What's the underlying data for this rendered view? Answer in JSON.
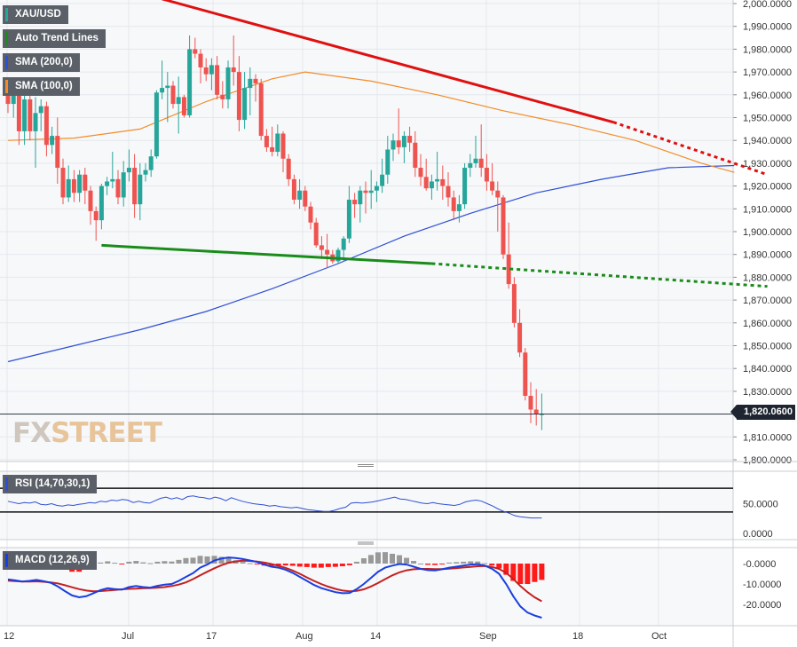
{
  "colors": {
    "bull": "#26a69a",
    "bear": "#ef5350",
    "sma200": "#2f4fd3",
    "sma100": "#f28c28",
    "trend_down": "#e01010",
    "trend_up": "#1a8c1a",
    "rsi": "#2f4fd3",
    "macd": "#1a3fe0",
    "signal": "#c42020",
    "hist_neg": "#ff1a1a",
    "hist_pos": "#999999"
  },
  "legend": {
    "symbol": "XAU/USD",
    "trend": "Auto Trend Lines",
    "sma200": "SMA (200,0)",
    "sma100": "SMA (100,0)",
    "rsi": "RSI (14,70,30,1)",
    "macd": "MACD (12,26,9)"
  },
  "watermark": {
    "fx": "FX",
    "street": "STREET"
  },
  "current_price": "1,820.0600",
  "x_axis_labels": [
    "12",
    "Jul",
    "17",
    "Aug",
    "14",
    "Sep",
    "18",
    "Oct"
  ],
  "chart_data": [
    {
      "type": "candlestick",
      "title": "XAU/USD",
      "ylim": [
        1800,
        2000
      ],
      "y_ticks": [
        "1,800.0000",
        "1,810.0000",
        "1,820.0000",
        "1,830.0000",
        "1,840.0000",
        "1,850.0000",
        "1,860.0000",
        "1,870.0000",
        "1,880.0000",
        "1,890.0000",
        "1,900.0000",
        "1,910.0000",
        "1,920.0000",
        "1,930.0000",
        "1,940.0000",
        "1,950.0000",
        "1,960.0000",
        "1,970.0000",
        "1,980.0000",
        "1,990.0000",
        "2,000.0000"
      ],
      "last_price": 1820.06,
      "ohlc": [
        [
          1962,
          1964,
          1952,
          1956
        ],
        [
          1956,
          1966,
          1950,
          1961
        ],
        [
          1961,
          1963,
          1938,
          1944
        ],
        [
          1944,
          1962,
          1938,
          1958
        ],
        [
          1958,
          1961,
          1940,
          1944
        ],
        [
          1944,
          1959,
          1928,
          1952
        ],
        [
          1952,
          1958,
          1944,
          1955
        ],
        [
          1955,
          1957,
          1933,
          1938
        ],
        [
          1938,
          1946,
          1934,
          1942
        ],
        [
          1942,
          1950,
          1921,
          1928
        ],
        [
          1928,
          1932,
          1912,
          1915
        ],
        [
          1915,
          1929,
          1913,
          1923
        ],
        [
          1923,
          1927,
          1913,
          1917
        ],
        [
          1917,
          1927,
          1913,
          1925
        ],
        [
          1925,
          1928,
          1912,
          1918
        ],
        [
          1918,
          1920,
          1903,
          1909
        ],
        [
          1909,
          1911,
          1896,
          1905
        ],
        [
          1905,
          1921,
          1901,
          1920
        ],
        [
          1920,
          1924,
          1916,
          1922
        ],
        [
          1922,
          1935,
          1919,
          1923
        ],
        [
          1923,
          1927,
          1912,
          1915
        ],
        [
          1915,
          1931,
          1911,
          1926
        ],
        [
          1926,
          1936,
          1922,
          1928
        ],
        [
          1928,
          1934,
          1906,
          1912
        ],
        [
          1912,
          1930,
          1905,
          1925
        ],
        [
          1925,
          1930,
          1922,
          1927
        ],
        [
          1927,
          1936,
          1924,
          1933
        ],
        [
          1933,
          1962,
          1932,
          1961
        ],
        [
          1961,
          1975,
          1958,
          1963
        ],
        [
          1963,
          1970,
          1948,
          1964
        ],
        [
          1964,
          1966,
          1954,
          1956
        ],
        [
          1956,
          1968,
          1943,
          1959
        ],
        [
          1959,
          1960,
          1950,
          1951
        ],
        [
          1951,
          1986,
          1950,
          1980
        ],
        [
          1980,
          1985,
          1976,
          1978
        ],
        [
          1978,
          1980,
          1965,
          1972
        ],
        [
          1972,
          1976,
          1966,
          1969
        ],
        [
          1969,
          1976,
          1962,
          1973
        ],
        [
          1973,
          1977,
          1958,
          1960
        ],
        [
          1960,
          1966,
          1954,
          1958
        ],
        [
          1958,
          1975,
          1954,
          1972
        ],
        [
          1972,
          1986,
          1964,
          1970
        ],
        [
          1970,
          1977,
          1944,
          1949
        ],
        [
          1949,
          1970,
          1945,
          1963
        ],
        [
          1963,
          1972,
          1951,
          1967
        ],
        [
          1967,
          1969,
          1957,
          1965
        ],
        [
          1965,
          1967,
          1940,
          1942
        ],
        [
          1942,
          1945,
          1935,
          1937
        ],
        [
          1937,
          1946,
          1933,
          1935
        ],
        [
          1935,
          1947,
          1933,
          1943
        ],
        [
          1943,
          1944,
          1926,
          1932
        ],
        [
          1932,
          1934,
          1920,
          1923
        ],
        [
          1923,
          1925,
          1912,
          1914
        ],
        [
          1914,
          1923,
          1910,
          1918
        ],
        [
          1918,
          1920,
          1909,
          1911
        ],
        [
          1911,
          1913,
          1901,
          1904
        ],
        [
          1904,
          1906,
          1893,
          1894
        ],
        [
          1894,
          1898,
          1888,
          1892
        ],
        [
          1892,
          1899,
          1884,
          1890
        ],
        [
          1890,
          1892,
          1886,
          1887
        ],
        [
          1887,
          1893,
          1886,
          1892
        ],
        [
          1892,
          1898,
          1887,
          1897
        ],
        [
          1897,
          1920,
          1895,
          1914
        ],
        [
          1914,
          1917,
          1906,
          1912
        ],
        [
          1912,
          1920,
          1904,
          1918
        ],
        [
          1918,
          1922,
          1908,
          1917
        ],
        [
          1917,
          1927,
          1910,
          1918
        ],
        [
          1918,
          1922,
          1913,
          1920
        ],
        [
          1920,
          1932,
          1917,
          1925
        ],
        [
          1925,
          1942,
          1921,
          1936
        ],
        [
          1936,
          1943,
          1931,
          1940
        ],
        [
          1940,
          1954,
          1934,
          1937
        ],
        [
          1937,
          1944,
          1930,
          1942
        ],
        [
          1942,
          1946,
          1935,
          1939
        ],
        [
          1939,
          1944,
          1924,
          1928
        ],
        [
          1928,
          1934,
          1920,
          1924
        ],
        [
          1924,
          1932,
          1918,
          1919
        ],
        [
          1919,
          1925,
          1914,
          1922
        ],
        [
          1922,
          1935,
          1918,
          1923
        ],
        [
          1923,
          1929,
          1914,
          1920
        ],
        [
          1920,
          1926,
          1911,
          1915
        ],
        [
          1915,
          1918,
          1905,
          1909
        ],
        [
          1909,
          1916,
          1904,
          1912
        ],
        [
          1912,
          1930,
          1910,
          1928
        ],
        [
          1928,
          1934,
          1924,
          1930
        ],
        [
          1930,
          1942,
          1928,
          1932
        ],
        [
          1932,
          1947,
          1924,
          1928
        ],
        [
          1928,
          1934,
          1918,
          1922
        ],
        [
          1922,
          1930,
          1916,
          1918
        ],
        [
          1918,
          1922,
          1900,
          1915
        ],
        [
          1915,
          1916,
          1888,
          1890
        ],
        [
          1890,
          1904,
          1875,
          1877
        ],
        [
          1877,
          1880,
          1858,
          1860
        ],
        [
          1860,
          1866,
          1845,
          1847
        ],
        [
          1847,
          1849,
          1826,
          1828
        ],
        [
          1828,
          1834,
          1816,
          1822
        ],
        [
          1822,
          1831,
          1815,
          1820
        ],
        [
          1820,
          1829,
          1813,
          1820
        ]
      ],
      "sma_200": [
        [
          0,
          1843
        ],
        [
          12,
          1850
        ],
        [
          24,
          1857
        ],
        [
          36,
          1865
        ],
        [
          48,
          1875
        ],
        [
          60,
          1886
        ],
        [
          72,
          1898
        ],
        [
          84,
          1908
        ],
        [
          96,
          1917
        ],
        [
          108,
          1923
        ],
        [
          120,
          1928
        ],
        [
          132,
          1929
        ]
      ],
      "sma_100": [
        [
          0,
          1940
        ],
        [
          12,
          1941
        ],
        [
          24,
          1945
        ],
        [
          36,
          1957
        ],
        [
          48,
          1967
        ],
        [
          54,
          1970
        ],
        [
          66,
          1966
        ],
        [
          78,
          1960
        ],
        [
          90,
          1953
        ],
        [
          102,
          1947
        ],
        [
          114,
          1940
        ],
        [
          126,
          1930
        ],
        [
          132,
          1926
        ]
      ],
      "trend_lines": [
        {
          "name": "resistance",
          "from": [
            28,
            2002
          ],
          "to": [
            110,
            1948
          ],
          "projected_to": [
            138,
            1925
          ]
        },
        {
          "name": "support",
          "from": [
            17,
            1894
          ],
          "to": [
            77,
            1886
          ],
          "projected_to": [
            138,
            1876
          ]
        }
      ]
    },
    {
      "type": "line",
      "title": "RSI (14,70,30,1)",
      "ylim": [
        0,
        100
      ],
      "y_ticks": [
        "0.0000",
        "50.0000"
      ],
      "overbought": 70,
      "oversold": 30,
      "values": [
        48,
        46,
        44,
        46,
        45,
        47,
        43,
        42,
        44,
        41,
        40,
        42,
        41,
        43,
        44,
        46,
        45,
        48,
        47,
        50,
        49,
        51,
        50,
        46,
        48,
        46,
        45,
        49,
        53,
        55,
        52,
        54,
        51,
        56,
        57,
        55,
        54,
        52,
        55,
        53,
        49,
        54,
        51,
        48,
        46,
        44,
        43,
        42,
        40,
        41,
        39,
        38,
        37,
        38,
        36,
        34,
        33,
        32,
        31,
        31,
        33,
        36,
        38,
        45,
        46,
        45,
        46,
        47,
        49,
        51,
        53,
        55,
        52,
        51,
        49,
        47,
        45,
        44,
        46,
        44,
        43,
        42,
        41,
        43,
        47,
        49,
        50,
        48,
        44,
        40,
        35,
        31,
        28,
        24,
        22,
        21,
        20,
        20,
        20
      ]
    },
    {
      "type": "line",
      "title": "MACD (12,26,9)",
      "ylim": [
        -28,
        4
      ],
      "y_ticks": [
        "-0.0000",
        "-10.0000",
        "-20.0000"
      ],
      "macd": [
        -7.8,
        -8.2,
        -8.8,
        -8.5,
        -8.0,
        -8.6,
        -9.4,
        -11.2,
        -13.5,
        -15.6,
        -16.5,
        -16.0,
        -14.5,
        -13.0,
        -12.1,
        -12.5,
        -12.8,
        -11.5,
        -11.0,
        -11.5,
        -11.8,
        -10.9,
        -10.3,
        -10.0,
        -8.5,
        -6.5,
        -4.7,
        -2.0,
        -0.5,
        1.5,
        2.5,
        3.0,
        2.7,
        2.2,
        1.5,
        0.8,
        -0.5,
        -1.5,
        -2.0,
        -3.0,
        -4.5,
        -6.5,
        -8.5,
        -10.5,
        -12.0,
        -13.0,
        -14.0,
        -14.5,
        -14.4,
        -12.5,
        -10.0,
        -7.0,
        -4.0,
        -2.0,
        -1.0,
        -0.2,
        -0.5,
        -1.5,
        -2.6,
        -3.2,
        -3.4,
        -2.8,
        -2.0,
        -1.5,
        -1.0,
        -0.5,
        -0.3,
        -1.0,
        -2.5,
        -5.0,
        -10.0,
        -16.0,
        -21.0,
        -24.0,
        -25.5,
        -26.5
      ],
      "signal": [
        -8.4,
        -8.6,
        -8.8,
        -8.8,
        -8.7,
        -8.9,
        -9.2,
        -9.7,
        -10.6,
        -11.6,
        -12.5,
        -13.2,
        -13.6,
        -13.5,
        -13.2,
        -12.9,
        -12.6,
        -12.4,
        -12.3,
        -12.1,
        -12.0,
        -11.8,
        -11.5,
        -11.0,
        -10.3,
        -9.2,
        -7.6,
        -5.8,
        -4.0,
        -2.3,
        -0.8,
        0.4,
        1.1,
        1.4,
        1.3,
        1.0,
        0.5,
        -0.2,
        -1.1,
        -2.1,
        -3.4,
        -5.0,
        -6.8,
        -8.5,
        -10.0,
        -11.3,
        -12.4,
        -13.2,
        -13.6,
        -13.4,
        -12.6,
        -11.2,
        -9.5,
        -7.6,
        -5.8,
        -4.3,
        -3.3,
        -2.8,
        -2.6,
        -2.6,
        -2.7,
        -2.7,
        -2.5,
        -2.2,
        -1.9,
        -1.6,
        -1.3,
        -1.2,
        -1.6,
        -2.6,
        -4.5,
        -7.5,
        -11.0,
        -14.0,
        -16.5,
        -18.5
      ],
      "histogram": [
        0.6,
        0.4,
        0,
        0.3,
        0.7,
        0.3,
        -0.2,
        -1.5,
        -2.9,
        -4.0,
        -4.0,
        -2.8,
        -0.9,
        0.5,
        1.1,
        0.4,
        -0.2,
        0.9,
        1.3,
        0.6,
        0.2,
        0.9,
        1.2,
        1.0,
        1.8,
        2.7,
        2.9,
        3.8,
        3.5,
        3.8,
        3.3,
        2.6,
        1.6,
        0.8,
        0.2,
        -0.2,
        -1.0,
        -1.3,
        -0.9,
        -0.9,
        -1.1,
        -1.5,
        -1.7,
        -2.0,
        -2.0,
        -1.7,
        -1.6,
        -1.3,
        -0.8,
        0.9,
        2.6,
        4.2,
        5.5,
        5.6,
        4.8,
        4.1,
        2.8,
        1.3,
        0,
        -0.6,
        -0.7,
        -0.1,
        0.5,
        0.7,
        0.9,
        1.1,
        1.0,
        0.2,
        -0.9,
        -2.4,
        -5.5,
        -8.5,
        -10.0,
        -10.0,
        -9.0,
        -8.0
      ]
    }
  ]
}
